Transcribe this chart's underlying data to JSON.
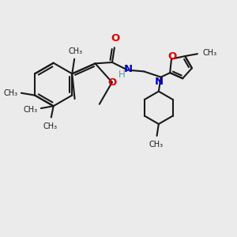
{
  "bg_color": "#ebebeb",
  "bond_color": "#1a1a1a",
  "O_color": "#dd0000",
  "N_color": "#0000cc",
  "H_color": "#5599aa",
  "lw": 1.5,
  "fs": 8.5,
  "xlim": [
    0,
    10
  ],
  "ylim": [
    0,
    10
  ]
}
